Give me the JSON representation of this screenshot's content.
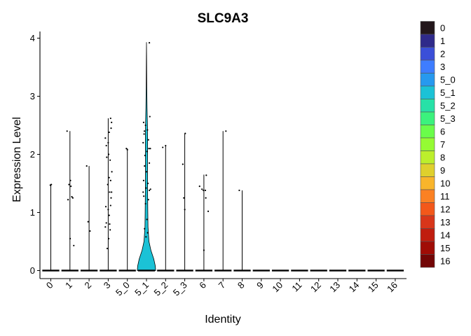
{
  "chart_data": {
    "type": "violin",
    "title": "SLC9A3",
    "xlabel": "Identity",
    "ylabel": "Expression Level",
    "ylim": [
      -0.15,
      4.15
    ],
    "yticks": [
      0,
      1,
      2,
      3,
      4
    ],
    "grid": false,
    "legend_position": "right",
    "categories": [
      "0",
      "1",
      "2",
      "3",
      "5_0",
      "5_1",
      "5_2",
      "5_3",
      "6",
      "7",
      "8",
      "9",
      "10",
      "11",
      "12",
      "13",
      "14",
      "15",
      "16"
    ],
    "colors": [
      "#23171b",
      "#2f2a8a",
      "#3b4fd8",
      "#3e7dff",
      "#2799ef",
      "#1bc2d6",
      "#27e1a7",
      "#3bf27d",
      "#6afd4a",
      "#95fb33",
      "#bcef2c",
      "#dfd02d",
      "#f9b52b",
      "#fb8123",
      "#f3581a",
      "#d8361a",
      "#c01d0e",
      "#a00c06",
      "#730606"
    ],
    "series": [
      {
        "category": "0",
        "max": 1.48,
        "points": [
          [
            -0.05,
            1.47
          ],
          [
            0.05,
            1.48
          ]
        ]
      },
      {
        "category": "1",
        "max": 2.4,
        "points": [
          [
            -0.3,
            2.4
          ],
          [
            0.05,
            1.55
          ],
          [
            -0.1,
            1.48
          ],
          [
            0.3,
            1.25
          ],
          [
            -0.2,
            1.22
          ],
          [
            0.1,
            1.45
          ],
          [
            0.02,
            0.55
          ],
          [
            0.4,
            0.43
          ],
          [
            0.2,
            1.27
          ]
        ]
      },
      {
        "category": "2",
        "max": 1.8,
        "points": [
          [
            -0.25,
            1.8
          ],
          [
            -0.1,
            0.84
          ],
          [
            0.1,
            0.68
          ]
        ]
      },
      {
        "category": "3",
        "max": 2.62,
        "points": [
          [
            0.25,
            2.62
          ],
          [
            0.35,
            2.55
          ],
          [
            -0.3,
            2.28
          ],
          [
            0.1,
            2.38
          ],
          [
            0.0,
            2.2
          ],
          [
            -0.2,
            2.15
          ],
          [
            0.3,
            2.45
          ],
          [
            0.05,
            2.0
          ],
          [
            -0.15,
            1.95
          ],
          [
            0.2,
            1.9
          ],
          [
            0.1,
            1.6
          ],
          [
            -0.05,
            1.48
          ],
          [
            0.25,
            1.55
          ],
          [
            0.15,
            1.35
          ],
          [
            -0.25,
            1.1
          ],
          [
            0.0,
            1.05
          ],
          [
            0.3,
            1.25
          ],
          [
            0.1,
            0.95
          ],
          [
            -0.2,
            0.82
          ],
          [
            -0.3,
            0.75
          ],
          [
            0.05,
            0.55
          ],
          [
            0.2,
            0.7
          ],
          [
            -0.1,
            0.38
          ],
          [
            0.25,
            1.12
          ],
          [
            0.35,
            1.35
          ],
          [
            0.38,
            1.7
          ],
          [
            0.15,
            0.8
          ]
        ]
      },
      {
        "category": "5_0",
        "max": 2.1,
        "points": [
          [
            -0.1,
            2.1
          ],
          [
            0.0,
            2.08
          ]
        ]
      },
      {
        "category": "5_1",
        "max": 3.93,
        "violin": [
          [
            0,
            0.48
          ],
          [
            0.08,
            0.46
          ],
          [
            0.2,
            0.38
          ],
          [
            0.35,
            0.23
          ],
          [
            0.5,
            0.13
          ],
          [
            0.75,
            0.08
          ],
          [
            1.0,
            0.07
          ],
          [
            1.3,
            0.06
          ],
          [
            1.6,
            0.055
          ],
          [
            1.9,
            0.055
          ],
          [
            2.2,
            0.06
          ],
          [
            2.5,
            0.05
          ],
          [
            2.8,
            0.03
          ],
          [
            3.2,
            0.015
          ],
          [
            3.6,
            0.008
          ],
          [
            3.93,
            0.0
          ]
        ],
        "points": [
          [
            0.3,
            3.92
          ],
          [
            0.35,
            2.65
          ],
          [
            -0.3,
            2.55
          ],
          [
            -0.1,
            2.5
          ],
          [
            0.1,
            2.42
          ],
          [
            -0.25,
            2.35
          ],
          [
            0.2,
            2.25
          ],
          [
            -0.35,
            2.2
          ],
          [
            0.25,
            2.1
          ],
          [
            0.05,
            2.05
          ],
          [
            -0.15,
            1.98
          ],
          [
            0.3,
            1.85
          ],
          [
            -0.2,
            1.8
          ],
          [
            0.0,
            1.7
          ],
          [
            -0.3,
            1.55
          ],
          [
            0.15,
            1.5
          ],
          [
            -0.05,
            1.42
          ],
          [
            0.3,
            1.38
          ],
          [
            -0.35,
            1.35
          ],
          [
            -0.28,
            1.28
          ],
          [
            0.2,
            1.22
          ],
          [
            -0.1,
            1.15
          ],
          [
            0.05,
            0.88
          ],
          [
            -0.2,
            0.72
          ],
          [
            0.12,
            0.65
          ],
          [
            -0.05,
            0.58
          ],
          [
            0.4,
            2.1
          ],
          [
            0.42,
            1.4
          ],
          [
            -0.22,
            2.4
          ]
        ]
      },
      {
        "category": "5_2",
        "max": 2.15,
        "points": [
          [
            -0.3,
            2.12
          ],
          [
            0.0,
            2.15
          ]
        ]
      },
      {
        "category": "5_3",
        "max": 2.36,
        "points": [
          [
            -0.2,
            1.83
          ],
          [
            0.05,
            2.36
          ],
          [
            -0.1,
            1.25
          ],
          [
            0.0,
            1.05
          ]
        ]
      },
      {
        "category": "6",
        "max": 1.65,
        "points": [
          [
            -0.45,
            1.45
          ],
          [
            -0.2,
            1.4
          ],
          [
            -0.05,
            1.38
          ],
          [
            0.15,
            1.38
          ],
          [
            0.25,
            1.64
          ],
          [
            0.2,
            1.25
          ],
          [
            0.0,
            0.35
          ],
          [
            0.45,
            1.02
          ]
        ]
      },
      {
        "category": "7",
        "max": 2.4,
        "points": [
          [
            0.3,
            2.4
          ]
        ]
      },
      {
        "category": "8",
        "max": 1.38,
        "points": [
          [
            -0.3,
            1.38
          ]
        ]
      },
      {
        "category": "9",
        "max": 0,
        "points": []
      },
      {
        "category": "10",
        "max": 0,
        "points": []
      },
      {
        "category": "11",
        "max": 0,
        "points": []
      },
      {
        "category": "12",
        "max": 0,
        "points": []
      },
      {
        "category": "13",
        "max": 0,
        "points": []
      },
      {
        "category": "14",
        "max": 0,
        "points": []
      },
      {
        "category": "15",
        "max": 0,
        "points": []
      },
      {
        "category": "16",
        "max": 0,
        "points": []
      }
    ]
  }
}
